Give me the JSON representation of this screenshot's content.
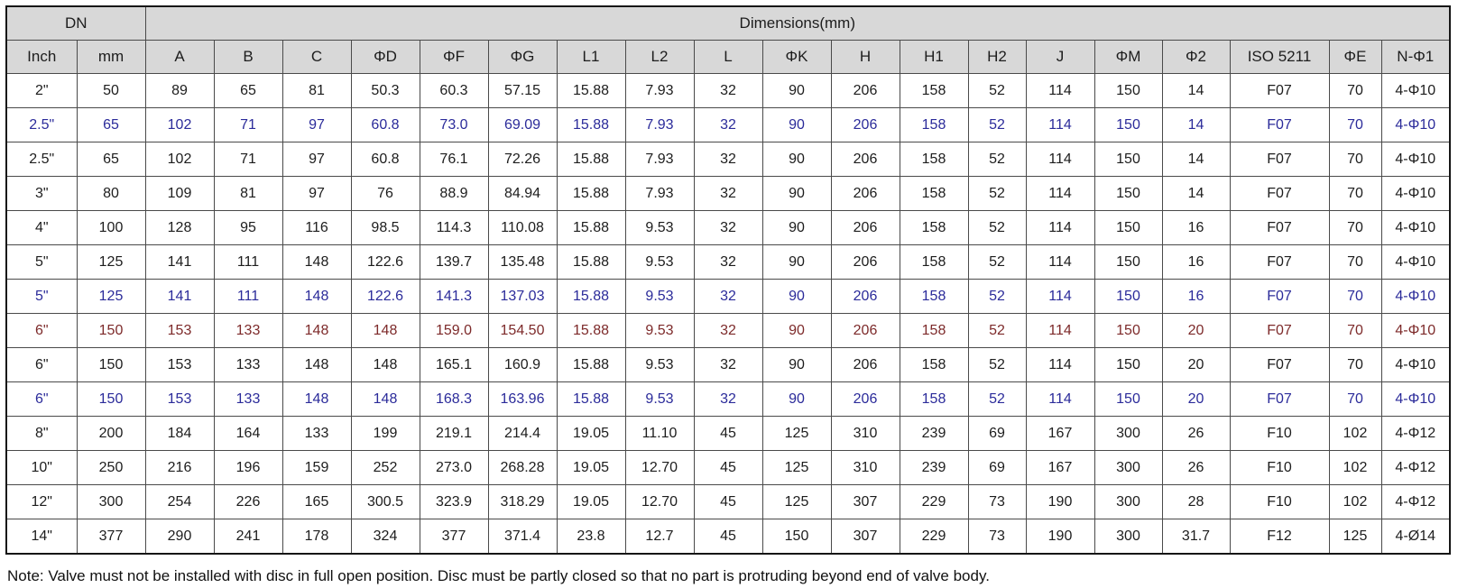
{
  "table": {
    "group_headers": {
      "dn": "DN",
      "dimensions": "Dimensions(mm)"
    },
    "columns": [
      "Inch",
      "mm",
      "A",
      "B",
      "C",
      "ΦD",
      "ΦF",
      "ΦG",
      "L1",
      "L2",
      "L",
      "ΦK",
      "H",
      "H1",
      "H2",
      "J",
      "ΦM",
      "Φ2",
      "ISO 5211",
      "ΦE",
      "N-Φ1"
    ],
    "rows": [
      {
        "variant": "default",
        "cells": [
          "2\"",
          "50",
          "89",
          "65",
          "81",
          "50.3",
          "60.3",
          "57.15",
          "15.88",
          "7.93",
          "32",
          "90",
          "206",
          "158",
          "52",
          "114",
          "150",
          "14",
          "F07",
          "70",
          "4-Φ10"
        ]
      },
      {
        "variant": "blue",
        "cells": [
          "2.5\"",
          "65",
          "102",
          "71",
          "97",
          "60.8",
          "73.0",
          "69.09",
          "15.88",
          "7.93",
          "32",
          "90",
          "206",
          "158",
          "52",
          "114",
          "150",
          "14",
          "F07",
          "70",
          "4-Φ10"
        ]
      },
      {
        "variant": "default",
        "cells": [
          "2.5\"",
          "65",
          "102",
          "71",
          "97",
          "60.8",
          "76.1",
          "72.26",
          "15.88",
          "7.93",
          "32",
          "90",
          "206",
          "158",
          "52",
          "114",
          "150",
          "14",
          "F07",
          "70",
          "4-Φ10"
        ]
      },
      {
        "variant": "default",
        "cells": [
          "3\"",
          "80",
          "109",
          "81",
          "97",
          "76",
          "88.9",
          "84.94",
          "15.88",
          "7.93",
          "32",
          "90",
          "206",
          "158",
          "52",
          "114",
          "150",
          "14",
          "F07",
          "70",
          "4-Φ10"
        ]
      },
      {
        "variant": "default",
        "cells": [
          "4\"",
          "100",
          "128",
          "95",
          "116",
          "98.5",
          "114.3",
          "110.08",
          "15.88",
          "9.53",
          "32",
          "90",
          "206",
          "158",
          "52",
          "114",
          "150",
          "16",
          "F07",
          "70",
          "4-Φ10"
        ]
      },
      {
        "variant": "default",
        "cells": [
          "5\"",
          "125",
          "141",
          "111",
          "148",
          "122.6",
          "139.7",
          "135.48",
          "15.88",
          "9.53",
          "32",
          "90",
          "206",
          "158",
          "52",
          "114",
          "150",
          "16",
          "F07",
          "70",
          "4-Φ10"
        ]
      },
      {
        "variant": "blue",
        "cells": [
          "5\"",
          "125",
          "141",
          "111",
          "148",
          "122.6",
          "141.3",
          "137.03",
          "15.88",
          "9.53",
          "32",
          "90",
          "206",
          "158",
          "52",
          "114",
          "150",
          "16",
          "F07",
          "70",
          "4-Φ10"
        ]
      },
      {
        "variant": "red",
        "cells": [
          "6\"",
          "150",
          "153",
          "133",
          "148",
          "148",
          "159.0",
          "154.50",
          "15.88",
          "9.53",
          "32",
          "90",
          "206",
          "158",
          "52",
          "114",
          "150",
          "20",
          "F07",
          "70",
          "4-Φ10"
        ]
      },
      {
        "variant": "default",
        "cells": [
          "6\"",
          "150",
          "153",
          "133",
          "148",
          "148",
          "165.1",
          "160.9",
          "15.88",
          "9.53",
          "32",
          "90",
          "206",
          "158",
          "52",
          "114",
          "150",
          "20",
          "F07",
          "70",
          "4-Φ10"
        ]
      },
      {
        "variant": "blue",
        "cells": [
          "6\"",
          "150",
          "153",
          "133",
          "148",
          "148",
          "168.3",
          "163.96",
          "15.88",
          "9.53",
          "32",
          "90",
          "206",
          "158",
          "52",
          "114",
          "150",
          "20",
          "F07",
          "70",
          "4-Φ10"
        ]
      },
      {
        "variant": "default",
        "cells": [
          "8\"",
          "200",
          "184",
          "164",
          "133",
          "199",
          "219.1",
          "214.4",
          "19.05",
          "11.10",
          "45",
          "125",
          "310",
          "239",
          "69",
          "167",
          "300",
          "26",
          "F10",
          "102",
          "4-Φ12"
        ]
      },
      {
        "variant": "default",
        "cells": [
          "10\"",
          "250",
          "216",
          "196",
          "159",
          "252",
          "273.0",
          "268.28",
          "19.05",
          "12.70",
          "45",
          "125",
          "310",
          "239",
          "69",
          "167",
          "300",
          "26",
          "F10",
          "102",
          "4-Φ12"
        ]
      },
      {
        "variant": "default",
        "cells": [
          "12\"",
          "300",
          "254",
          "226",
          "165",
          "300.5",
          "323.9",
          "318.29",
          "19.05",
          "12.70",
          "45",
          "125",
          "307",
          "229",
          "73",
          "190",
          "300",
          "28",
          "F10",
          "102",
          "4-Φ12"
        ]
      },
      {
        "variant": "default",
        "cells": [
          "14\"",
          "377",
          "290",
          "241",
          "178",
          "324",
          "377",
          "371.4",
          "23.8",
          "12.7",
          "45",
          "150",
          "307",
          "229",
          "73",
          "190",
          "300",
          "31.7",
          "F12",
          "125",
          "4-Ø14"
        ]
      }
    ]
  },
  "note": "Note: Valve must not be installed with disc in full open position. Disc must be partly closed so that no part is protruding beyond end of valve body.",
  "colors": {
    "header_background": "#d8d8d8",
    "row_text_default": "#1d1d1d",
    "row_text_blue": "#2b2b9a",
    "row_text_red": "#7d2a2a",
    "border_inner": "#4a4a4a",
    "border_outer": "#161616"
  }
}
